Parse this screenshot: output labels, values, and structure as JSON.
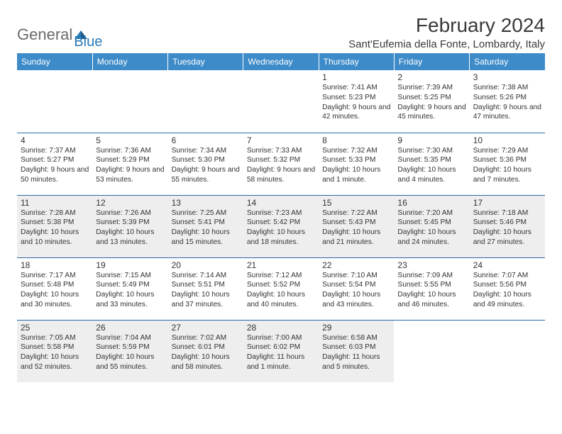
{
  "logo": {
    "part1": "General",
    "part2": "Blue"
  },
  "title": "February 2024",
  "location": "Sant'Eufemia della Fonte, Lombardy, Italy",
  "colors": {
    "header_bg": "#3d8bc9",
    "header_fg": "#ffffff",
    "row_divider": "#2a6aa6",
    "shade_bg": "#eeeeee",
    "text": "#333333",
    "logo_gray": "#6b6b6b",
    "logo_blue": "#2a7ab8"
  },
  "days_of_week": [
    "Sunday",
    "Monday",
    "Tuesday",
    "Wednesday",
    "Thursday",
    "Friday",
    "Saturday"
  ],
  "weeks": [
    [
      null,
      null,
      null,
      null,
      {
        "n": "1",
        "sr": "7:41 AM",
        "ss": "5:23 PM",
        "dl": "Daylight: 9 hours and 42 minutes."
      },
      {
        "n": "2",
        "sr": "7:39 AM",
        "ss": "5:25 PM",
        "dl": "Daylight: 9 hours and 45 minutes."
      },
      {
        "n": "3",
        "sr": "7:38 AM",
        "ss": "5:26 PM",
        "dl": "Daylight: 9 hours and 47 minutes."
      }
    ],
    [
      {
        "n": "4",
        "sr": "7:37 AM",
        "ss": "5:27 PM",
        "dl": "Daylight: 9 hours and 50 minutes."
      },
      {
        "n": "5",
        "sr": "7:36 AM",
        "ss": "5:29 PM",
        "dl": "Daylight: 9 hours and 53 minutes."
      },
      {
        "n": "6",
        "sr": "7:34 AM",
        "ss": "5:30 PM",
        "dl": "Daylight: 9 hours and 55 minutes."
      },
      {
        "n": "7",
        "sr": "7:33 AM",
        "ss": "5:32 PM",
        "dl": "Daylight: 9 hours and 58 minutes."
      },
      {
        "n": "8",
        "sr": "7:32 AM",
        "ss": "5:33 PM",
        "dl": "Daylight: 10 hours and 1 minute."
      },
      {
        "n": "9",
        "sr": "7:30 AM",
        "ss": "5:35 PM",
        "dl": "Daylight: 10 hours and 4 minutes."
      },
      {
        "n": "10",
        "sr": "7:29 AM",
        "ss": "5:36 PM",
        "dl": "Daylight: 10 hours and 7 minutes."
      }
    ],
    [
      {
        "n": "11",
        "sr": "7:28 AM",
        "ss": "5:38 PM",
        "dl": "Daylight: 10 hours and 10 minutes."
      },
      {
        "n": "12",
        "sr": "7:26 AM",
        "ss": "5:39 PM",
        "dl": "Daylight: 10 hours and 13 minutes."
      },
      {
        "n": "13",
        "sr": "7:25 AM",
        "ss": "5:41 PM",
        "dl": "Daylight: 10 hours and 15 minutes."
      },
      {
        "n": "14",
        "sr": "7:23 AM",
        "ss": "5:42 PM",
        "dl": "Daylight: 10 hours and 18 minutes."
      },
      {
        "n": "15",
        "sr": "7:22 AM",
        "ss": "5:43 PM",
        "dl": "Daylight: 10 hours and 21 minutes."
      },
      {
        "n": "16",
        "sr": "7:20 AM",
        "ss": "5:45 PM",
        "dl": "Daylight: 10 hours and 24 minutes."
      },
      {
        "n": "17",
        "sr": "7:18 AM",
        "ss": "5:46 PM",
        "dl": "Daylight: 10 hours and 27 minutes."
      }
    ],
    [
      {
        "n": "18",
        "sr": "7:17 AM",
        "ss": "5:48 PM",
        "dl": "Daylight: 10 hours and 30 minutes."
      },
      {
        "n": "19",
        "sr": "7:15 AM",
        "ss": "5:49 PM",
        "dl": "Daylight: 10 hours and 33 minutes."
      },
      {
        "n": "20",
        "sr": "7:14 AM",
        "ss": "5:51 PM",
        "dl": "Daylight: 10 hours and 37 minutes."
      },
      {
        "n": "21",
        "sr": "7:12 AM",
        "ss": "5:52 PM",
        "dl": "Daylight: 10 hours and 40 minutes."
      },
      {
        "n": "22",
        "sr": "7:10 AM",
        "ss": "5:54 PM",
        "dl": "Daylight: 10 hours and 43 minutes."
      },
      {
        "n": "23",
        "sr": "7:09 AM",
        "ss": "5:55 PM",
        "dl": "Daylight: 10 hours and 46 minutes."
      },
      {
        "n": "24",
        "sr": "7:07 AM",
        "ss": "5:56 PM",
        "dl": "Daylight: 10 hours and 49 minutes."
      }
    ],
    [
      {
        "n": "25",
        "sr": "7:05 AM",
        "ss": "5:58 PM",
        "dl": "Daylight: 10 hours and 52 minutes."
      },
      {
        "n": "26",
        "sr": "7:04 AM",
        "ss": "5:59 PM",
        "dl": "Daylight: 10 hours and 55 minutes."
      },
      {
        "n": "27",
        "sr": "7:02 AM",
        "ss": "6:01 PM",
        "dl": "Daylight: 10 hours and 58 minutes."
      },
      {
        "n": "28",
        "sr": "7:00 AM",
        "ss": "6:02 PM",
        "dl": "Daylight: 11 hours and 1 minute."
      },
      {
        "n": "29",
        "sr": "6:58 AM",
        "ss": "6:03 PM",
        "dl": "Daylight: 11 hours and 5 minutes."
      },
      null,
      null
    ]
  ],
  "labels": {
    "sunrise": "Sunrise:",
    "sunset": "Sunset:"
  },
  "shaded_weeks": [
    2,
    4
  ]
}
